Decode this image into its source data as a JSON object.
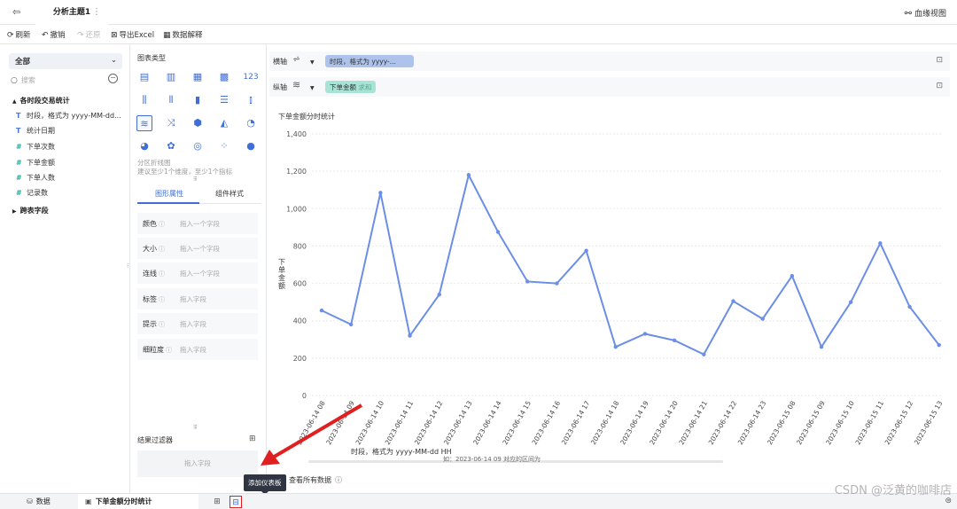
{
  "topbar": {
    "back_icon": "exit-icon",
    "title": "分析主题1",
    "more": "⋮",
    "lineage_label": "血缘视图"
  },
  "toolbar": {
    "refresh": "刷新",
    "undo": "撤销",
    "redo": "还原",
    "export": "导出Excel",
    "explain": "数据解释"
  },
  "left": {
    "scope": "全部",
    "search_placeholder": "搜索",
    "group1": "各时段交易统计",
    "fields": [
      {
        "type": "T",
        "name": "时段，格式为 yyyy-MM-dd..."
      },
      {
        "type": "T",
        "name": "统计日期"
      },
      {
        "type": "#",
        "name": "下单次数"
      },
      {
        "type": "#",
        "name": "下单金额"
      },
      {
        "type": "#",
        "name": "下单人数"
      },
      {
        "type": "#",
        "name": "记录数"
      }
    ],
    "group2": "跨表字段"
  },
  "mid": {
    "chart_type_title": "图表类型",
    "chart_type_name": "分区折线图",
    "chart_type_hint": "建议至少1个维度，至少1个指标",
    "tab_graph": "图形属性",
    "tab_component": "组件样式",
    "props": [
      {
        "label": "颜色",
        "placeholder": "拖入一个字段"
      },
      {
        "label": "大小",
        "placeholder": "拖入一个字段"
      },
      {
        "label": "连线",
        "placeholder": "拖入一个字段"
      },
      {
        "label": "标签",
        "placeholder": "拖入字段"
      },
      {
        "label": "提示",
        "placeholder": "拖入字段"
      },
      {
        "label": "细粒度",
        "placeholder": "拖入字段"
      }
    ],
    "filter_title": "结果过滤器",
    "filter_placeholder": "拖入字段"
  },
  "axes": {
    "x_label": "横轴",
    "x_field": "时段，格式为 yyyy-...",
    "y_label": "纵轴",
    "y_field": "下单金额",
    "y_agg": "求和"
  },
  "chart_title": "下单金额分时统计",
  "chart_data": {
    "type": "line",
    "ylabel": "下单金额",
    "xlabel": "时段，格式为 yyyy-MM-dd HH",
    "x_sublabel": "如：2023-06-14 09 对应的区间为",
    "ylim": [
      0,
      1400
    ],
    "yticks": [
      "0",
      "200",
      "400",
      "600",
      "800",
      "1,000",
      "1,200",
      "1,400"
    ],
    "categories": [
      "2023-06-14 08",
      "2023-06-14 09",
      "2023-06-14 10",
      "2023-06-14 11",
      "2023-06-14 12",
      "2023-06-14 13",
      "2023-06-14 14",
      "2023-06-14 15",
      "2023-06-14 16",
      "2023-06-14 17",
      "2023-06-14 18",
      "2023-06-14 19",
      "2023-06-14 20",
      "2023-06-14 21",
      "2023-06-14 22",
      "2023-06-14 23",
      "2023-06-15 08",
      "2023-06-15 09",
      "2023-06-15 10",
      "2023-06-15 11",
      "2023-06-15 12",
      "2023-06-15 13"
    ],
    "values": [
      455,
      380,
      1085,
      320,
      540,
      1180,
      875,
      610,
      600,
      775,
      260,
      330,
      295,
      220,
      505,
      410,
      640,
      260,
      500,
      815,
      475,
      270
    ],
    "color": "#6b8ee6",
    "grid": true
  },
  "view_all": "查看所有数据",
  "tooltip": "添加仪表板",
  "bottom": {
    "data_tab": "数据",
    "component_tab": "下单金额分时统计"
  },
  "watermark": "CSDN @泛黄的咖啡店"
}
